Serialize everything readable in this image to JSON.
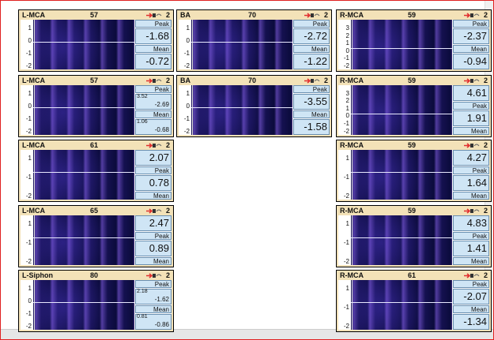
{
  "columns": [
    {
      "panels": [
        {
          "name": "L-MCA",
          "depth": "57",
          "channel": "2",
          "axis": [
            "1",
            "0",
            "-1",
            "-2"
          ],
          "cells": [
            {
              "label": "Peak"
            },
            {
              "values": [
                "-1.68"
              ]
            },
            {
              "label": "Mean"
            },
            {
              "values": [
                "-0.72"
              ]
            }
          ]
        },
        {
          "name": "L-MCA",
          "depth": "57",
          "channel": "2",
          "axis": [
            "1",
            "0",
            "-1",
            "-2"
          ],
          "cells": [
            {
              "label": "Peak"
            },
            {
              "values": [
                "3.52",
                "-2.69"
              ]
            },
            {
              "label": "Mean"
            },
            {
              "values": [
                "1.06",
                "-0.68"
              ]
            }
          ]
        },
        {
          "name": "L-MCA",
          "depth": "61",
          "channel": "2",
          "axis": [
            "1",
            "-1",
            "-2"
          ],
          "cells": [
            {
              "values": [
                "2.07"
              ]
            },
            {
              "label": "Peak"
            },
            {
              "values": [
                "0.78"
              ]
            },
            {
              "label": "Mean"
            }
          ]
        },
        {
          "name": "L-MCA",
          "depth": "65",
          "channel": "2",
          "axis": [
            "1",
            "-1",
            "-2"
          ],
          "cells": [
            {
              "values": [
                "2.47"
              ]
            },
            {
              "label": "Peak"
            },
            {
              "values": [
                "0.89"
              ]
            },
            {
              "label": "Mean"
            }
          ]
        },
        {
          "name": "L-Siphon",
          "depth": "80",
          "channel": "2",
          "axis": [
            "1",
            "0",
            "-1",
            "-2"
          ],
          "cells": [
            {
              "label": "Peak"
            },
            {
              "values": [
                "2.18",
                "-1.62"
              ]
            },
            {
              "label": "Mean"
            },
            {
              "values": [
                "0.81",
                "-0.86"
              ]
            }
          ]
        }
      ]
    },
    {
      "panels": [
        {
          "name": "BA",
          "depth": "70",
          "channel": "2",
          "axis": [
            "1",
            "0",
            "-1",
            "-2"
          ],
          "cells": [
            {
              "label": "Peak"
            },
            {
              "values": [
                "-2.72"
              ]
            },
            {
              "label": "Mean"
            },
            {
              "values": [
                "-1.22"
              ]
            }
          ]
        },
        {
          "name": "BA",
          "depth": "70",
          "channel": "2",
          "axis": [
            "1",
            "0",
            "-1",
            "-2"
          ],
          "cells": [
            {
              "label": "Peak"
            },
            {
              "values": [
                "-3.55"
              ]
            },
            {
              "label": "Mean"
            },
            {
              "values": [
                "-1.58"
              ]
            }
          ]
        }
      ]
    },
    {
      "panels": [
        {
          "name": "R-MCA",
          "depth": "59",
          "channel": "2",
          "axis": [
            "3",
            "2",
            "1",
            "0",
            "-1",
            "-2"
          ],
          "cells": [
            {
              "label": "Peak"
            },
            {
              "values": [
                "-2.37"
              ]
            },
            {
              "label": "Mean"
            },
            {
              "values": [
                "-0.94"
              ]
            }
          ]
        },
        {
          "name": "R-MCA",
          "depth": "59",
          "channel": "2",
          "axis": [
            "3",
            "2",
            "1",
            "0",
            "-1",
            "-2"
          ],
          "cells": [
            {
              "values": [
                "4.61"
              ]
            },
            {
              "label": "Peak"
            },
            {
              "values": [
                "1.91"
              ]
            },
            {
              "label": "Mean"
            }
          ]
        },
        {
          "name": "R-MCA",
          "depth": "59",
          "channel": "2",
          "axis": [
            "1",
            "-1",
            "-2"
          ],
          "cells": [
            {
              "values": [
                "4.27"
              ]
            },
            {
              "label": "Peak"
            },
            {
              "values": [
                "1.64"
              ]
            },
            {
              "label": "Mean"
            }
          ]
        },
        {
          "name": "R-MCA",
          "depth": "59",
          "channel": "2",
          "axis": [
            "1",
            "-1",
            "-2"
          ],
          "cells": [
            {
              "values": [
                "4.83"
              ]
            },
            {
              "label": "Peak"
            },
            {
              "values": [
                "1.41"
              ]
            },
            {
              "label": "Mean"
            }
          ]
        },
        {
          "name": "R-MCA",
          "depth": "61",
          "channel": "2",
          "axis": [
            "1",
            "-1",
            "-2"
          ],
          "cells": [
            {
              "label": "Peak"
            },
            {
              "values": [
                "-2.07"
              ]
            },
            {
              "label": "Mean"
            },
            {
              "values": [
                "-1.34"
              ]
            }
          ]
        }
      ]
    }
  ]
}
